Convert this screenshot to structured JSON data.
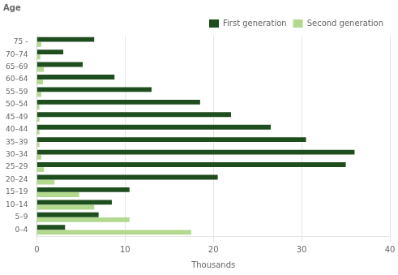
{
  "chart_data": {
    "type": "bar",
    "orientation": "horizontal",
    "title": "Age",
    "xlabel": "Thousands",
    "categories": [
      "75 -",
      "70–74",
      "65–69",
      "60–64",
      "55–59",
      "50–54",
      "45–49",
      "40–44",
      "35–39",
      "30–34",
      "25–29",
      "20–24",
      "15–19",
      "10–14",
      "5–9",
      "0–4"
    ],
    "series": [
      {
        "name": "First generation",
        "color": "#1e4d1e",
        "values": [
          6.5,
          3.0,
          5.2,
          8.8,
          13.0,
          18.5,
          22.0,
          26.5,
          30.5,
          36.0,
          35.0,
          20.5,
          10.5,
          8.5,
          7.0,
          3.2
        ]
      },
      {
        "name": "Second generation",
        "color": "#b2d98d",
        "values": [
          0.5,
          0.4,
          0.8,
          0.7,
          0.5,
          0.3,
          0.3,
          0.3,
          0.3,
          0.5,
          0.8,
          2.0,
          4.8,
          6.5,
          10.5,
          17.5
        ]
      }
    ],
    "xlim": [
      0,
      40
    ],
    "xticks": [
      0,
      10,
      20,
      30,
      40
    ],
    "grid": true,
    "legend": "upper right"
  }
}
